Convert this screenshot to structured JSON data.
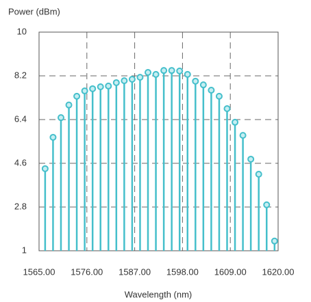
{
  "chart_data": {
    "type": "stem",
    "y_label": "Power (dBm)",
    "x_label": "Wavelength (nm)",
    "x": [
      1566.4,
      1568.22,
      1570.04,
      1571.86,
      1573.68,
      1575.5,
      1577.32,
      1579.14,
      1580.96,
      1582.78,
      1584.6,
      1586.42,
      1588.24,
      1590.06,
      1591.88,
      1593.7,
      1595.52,
      1597.34,
      1599.16,
      1600.98,
      1602.8,
      1604.62,
      1606.44,
      1608.26,
      1610.08,
      1611.9,
      1613.72,
      1615.54,
      1617.36,
      1619.18
    ],
    "values": [
      4.38,
      5.67,
      6.48,
      7.0,
      7.36,
      7.58,
      7.67,
      7.75,
      7.78,
      7.92,
      8.0,
      8.06,
      8.14,
      8.34,
      8.26,
      8.42,
      8.42,
      8.4,
      8.26,
      7.98,
      7.83,
      7.61,
      7.36,
      6.85,
      6.29,
      5.75,
      4.77,
      4.15,
      2.89,
      1.4
    ],
    "color": "#45bfcb",
    "xlim": [
      1565,
      1620
    ],
    "xticks": [
      {
        "value": 1565,
        "label": "1565.00"
      },
      {
        "value": 1576,
        "label": "1576.00"
      },
      {
        "value": 1587,
        "label": "1587.00"
      },
      {
        "value": 1598,
        "label": "1598.00"
      },
      {
        "value": 1609,
        "label": "1609.00"
      },
      {
        "value": 1620,
        "label": "1620.00"
      }
    ],
    "ylim": [
      1,
      10
    ],
    "yticks": [
      1,
      2.8,
      4.6,
      6.4,
      8.2,
      10
    ],
    "grid": true
  }
}
